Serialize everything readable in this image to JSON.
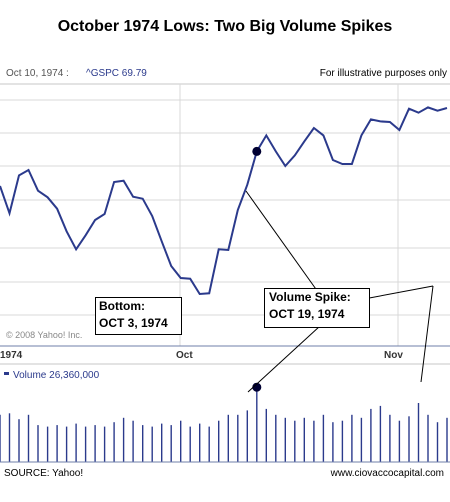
{
  "title": "October 1974 Lows:  Two Big Volume Spikes",
  "header": {
    "date": "Oct 10, 1974 :",
    "symbol_label": "^GSPC 69.79",
    "disclaimer": "For illustrative purposes only"
  },
  "copyright": "© 2008 Yahoo! Inc.",
  "volume_label": "Volume 26,360,000",
  "annotations": {
    "bottom": {
      "line1": "Bottom:",
      "line2": "OCT 3, 1974"
    },
    "spike": {
      "line1": "Volume Spike:",
      "line2": "OCT 19, 1974"
    }
  },
  "footer": {
    "source": "SOURCE: Yahoo!",
    "website": "www.ciovaccocapital.com"
  },
  "colors": {
    "line": "#2b3a8c",
    "grid": "#d8d8d8",
    "axis": "#6f7fa8",
    "marker": "#000033"
  },
  "chart_data": {
    "type": "line",
    "x_tick_labels": [
      "1974",
      "Oct",
      "Nov"
    ],
    "y_axis_labels": [],
    "price_series": {
      "name": "^GSPC",
      "values": [
        69.6,
        65.5,
        71.2,
        72.0,
        68.9,
        67.9,
        66.2,
        62.8,
        60.1,
        62.2,
        64.5,
        65.4,
        70.2,
        70.4,
        68.0,
        67.7,
        65.1,
        61.3,
        57.6,
        55.8,
        55.7,
        53.4,
        53.5,
        60.1,
        60.0,
        66.0,
        69.8,
        74.8,
        77.2,
        74.8,
        72.6,
        74.2,
        76.3,
        78.3,
        77.2,
        73.5,
        72.9,
        72.9,
        77.2,
        79.6,
        79.3,
        79.2,
        78.0,
        81.2,
        80.6,
        81.4,
        80.9,
        81.3
      ]
    },
    "volume_series": {
      "name": "Volume",
      "values": [
        16.0,
        16.5,
        14.5,
        16.0,
        12.5,
        12.0,
        12.5,
        12.0,
        13.0,
        12.0,
        12.5,
        12.0,
        13.5,
        15.0,
        14.0,
        12.5,
        12.0,
        13.0,
        12.5,
        14.0,
        12.0,
        13.0,
        12.0,
        14.0,
        16.0,
        16.0,
        17.5,
        24.0,
        18.0,
        16.0,
        15.0,
        14.0,
        15.0,
        14.0,
        16.0,
        13.5,
        14.0,
        16.0,
        15.0,
        18.0,
        19.0,
        16.0,
        14.0,
        15.5,
        20.0,
        16.0,
        13.5,
        15.0
      ]
    },
    "marked_points": [
      {
        "label": "OCT 19, 1974 price",
        "index": 27,
        "value": 74.8
      },
      {
        "label": "OCT 19, 1974 volume",
        "index": 27,
        "value": 24.0
      }
    ]
  }
}
